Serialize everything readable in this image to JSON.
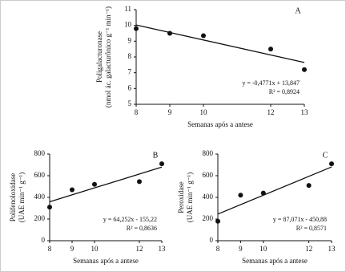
{
  "chart_data": [
    {
      "type": "scatter",
      "panel": "A",
      "xlabel": "Semanas após a antese",
      "ylabel": [
        "Poligalacturonase",
        "(nmol ác. galacturônico g⁻¹ min⁻¹)"
      ],
      "x": [
        8,
        9,
        10,
        12,
        13
      ],
      "values": [
        9.8,
        9.5,
        9.35,
        8.5,
        7.2
      ],
      "color": "#111111",
      "trend": {
        "x": [
          8,
          13
        ],
        "values": [
          10.03,
          7.65
        ]
      },
      "annotations": [
        "y = -0,4771x + 13,847",
        "R² = 0,8924"
      ],
      "xlim": [
        8,
        13
      ],
      "xticks": [
        8,
        9,
        10,
        12,
        13
      ],
      "ylim": [
        5,
        11
      ],
      "yticks": [
        5,
        6,
        7,
        8,
        9,
        10,
        11
      ]
    },
    {
      "type": "scatter",
      "panel": "B",
      "xlabel": "Semanas após a antese",
      "ylabel": [
        "Polifenoloxidase",
        "(UAE min⁻¹ g⁻¹)"
      ],
      "x": [
        8,
        9,
        10,
        12,
        13
      ],
      "values": [
        310,
        470,
        520,
        545,
        710
      ],
      "color": "#111111",
      "trend": {
        "x": [
          8,
          13
        ],
        "values": [
          359,
          680
        ]
      },
      "annotations": [
        "y = 64,252x - 155,22",
        "R² = 0,8636"
      ],
      "xlim": [
        8,
        13
      ],
      "xticks": [
        8,
        9,
        10,
        12,
        13
      ],
      "ylim": [
        0,
        800
      ],
      "yticks": [
        0,
        200,
        400,
        600,
        800
      ]
    },
    {
      "type": "scatter",
      "panel": "C",
      "xlabel": "Semanas após a antese",
      "ylabel": [
        "Peroxidase",
        "(UAE min⁻¹ g⁻¹)"
      ],
      "x": [
        8,
        9,
        10,
        12,
        13
      ],
      "values": [
        180,
        420,
        440,
        510,
        710
      ],
      "color": "#111111",
      "trend": {
        "x": [
          8,
          13
        ],
        "values": [
          246,
          681
        ]
      },
      "annotations": [
        "y = 87,071x - 450,88",
        "R² = 0,8571"
      ],
      "xlim": [
        8,
        13
      ],
      "xticks": [
        8,
        9,
        10,
        12,
        13
      ],
      "ylim": [
        0,
        800
      ],
      "yticks": [
        0,
        200,
        400,
        600,
        800
      ]
    }
  ]
}
